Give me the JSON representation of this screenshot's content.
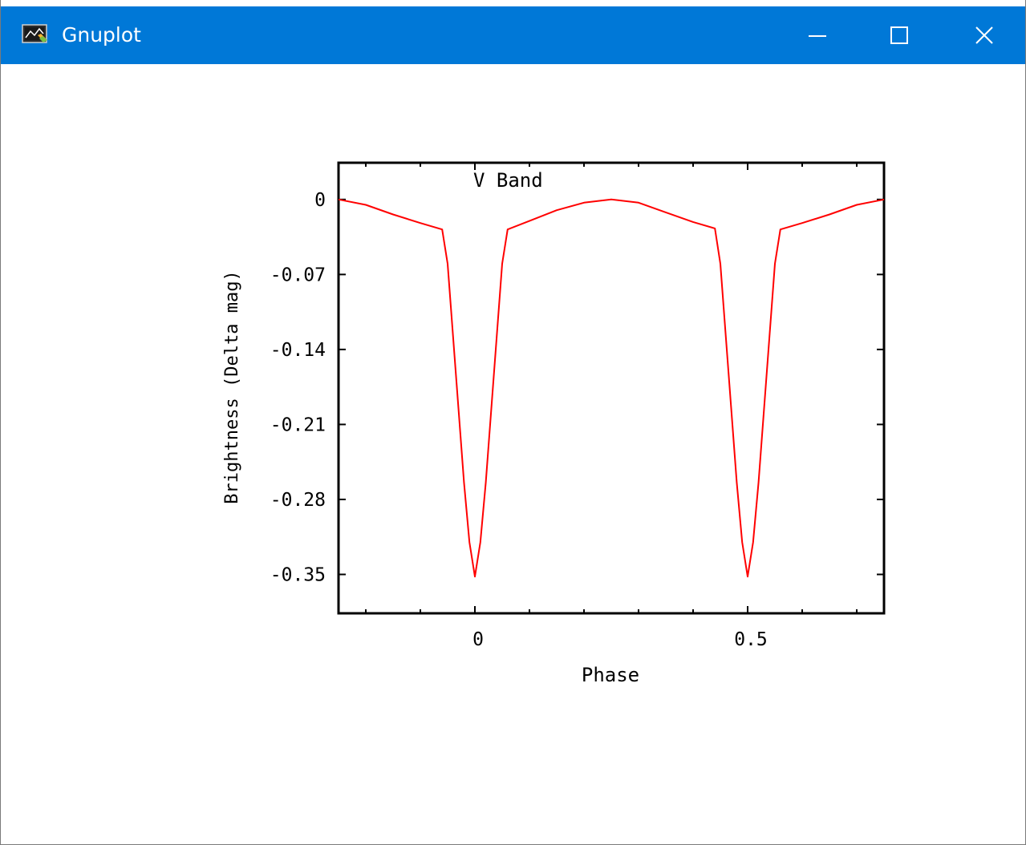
{
  "window": {
    "title": "Gnuplot",
    "titlebar_color": "#0078d7",
    "icon": "gnuplot-app-icon",
    "controls": {
      "minimize_icon": "minimize-icon",
      "maximize_icon": "maximize-icon",
      "close_icon": "close-icon"
    }
  },
  "chart_data": {
    "type": "line",
    "title": "",
    "annotation": "V Band",
    "xlabel": "Phase",
    "ylabel": "Brightness (Delta mag)",
    "xlim": [
      -0.25,
      0.75
    ],
    "ylim": [
      -0.3863,
      0.0343
    ],
    "x_ticks": [
      {
        "value": 0,
        "label": "0"
      },
      {
        "value": 0.5,
        "label": "0.5"
      }
    ],
    "x_minor_ticks": [
      -0.2,
      -0.1,
      0.1,
      0.2,
      0.3,
      0.4,
      0.6,
      0.7
    ],
    "y_ticks": [
      {
        "value": 0,
        "label": "0"
      },
      {
        "value": -0.07,
        "label": "-0.07"
      },
      {
        "value": -0.14,
        "label": "-0.14"
      },
      {
        "value": -0.21,
        "label": "-0.21"
      },
      {
        "value": -0.28,
        "label": "-0.28"
      },
      {
        "value": -0.35,
        "label": "-0.35"
      }
    ],
    "grid": false,
    "series": [
      {
        "color": "#ff0000",
        "x": [
          -0.25,
          -0.2,
          -0.15,
          -0.1,
          -0.06,
          -0.05,
          -0.04,
          -0.03,
          -0.02,
          -0.01,
          0,
          0.01,
          0.02,
          0.03,
          0.04,
          0.05,
          0.06,
          0.1,
          0.15,
          0.2,
          0.25,
          0.3,
          0.35,
          0.4,
          0.44,
          0.45,
          0.46,
          0.47,
          0.48,
          0.49,
          0.5,
          0.51,
          0.52,
          0.53,
          0.54,
          0.55,
          0.56,
          0.6,
          0.65,
          0.7,
          0.75
        ],
        "y": [
          0,
          -0.005,
          -0.014,
          -0.022,
          -0.028,
          -0.06,
          -0.128,
          -0.196,
          -0.264,
          -0.32,
          -0.352,
          -0.32,
          -0.264,
          -0.196,
          -0.128,
          -0.06,
          -0.028,
          -0.02,
          -0.01,
          -0.003,
          0,
          -0.003,
          -0.012,
          -0.021,
          -0.027,
          -0.06,
          -0.128,
          -0.196,
          -0.264,
          -0.32,
          -0.352,
          -0.32,
          -0.264,
          -0.196,
          -0.128,
          -0.06,
          -0.028,
          -0.022,
          -0.014,
          -0.005,
          0
        ]
      }
    ]
  }
}
